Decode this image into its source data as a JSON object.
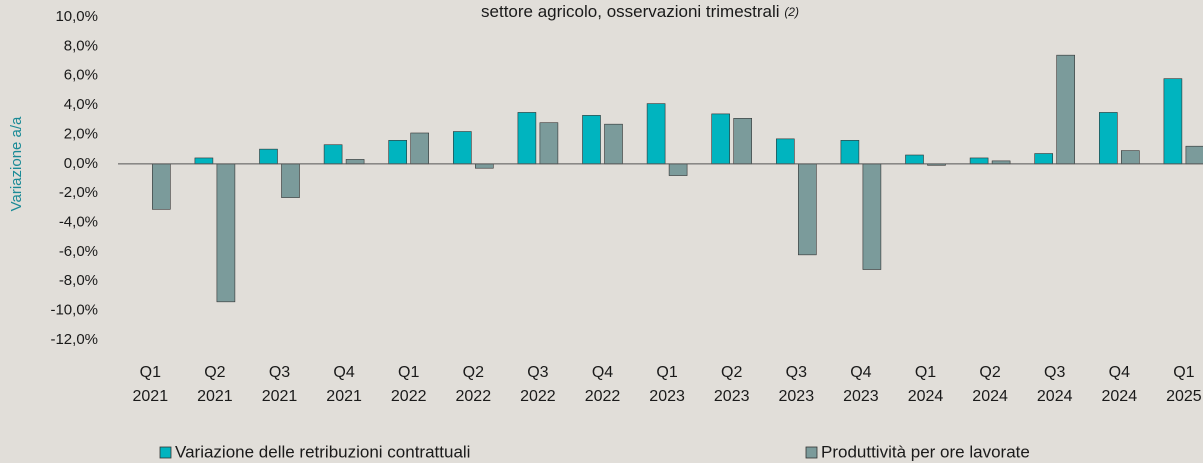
{
  "chart_data": {
    "type": "bar",
    "title": "settore agricolo, osservazioni trimestrali",
    "title_note": "(2)",
    "y_label": "Variazione a/a",
    "categories": [
      [
        "Q1",
        "2021"
      ],
      [
        "Q2",
        "2021"
      ],
      [
        "Q3",
        "2021"
      ],
      [
        "Q4",
        "2021"
      ],
      [
        "Q1",
        "2022"
      ],
      [
        "Q2",
        "2022"
      ],
      [
        "Q3",
        "2022"
      ],
      [
        "Q4",
        "2022"
      ],
      [
        "Q1",
        "2023"
      ],
      [
        "Q2",
        "2023"
      ],
      [
        "Q3",
        "2023"
      ],
      [
        "Q4",
        "2023"
      ],
      [
        "Q1",
        "2024"
      ],
      [
        "Q2",
        "2024"
      ],
      [
        "Q3",
        "2024"
      ],
      [
        "Q4",
        "2024"
      ],
      [
        "Q1",
        "2025"
      ]
    ],
    "series": [
      {
        "name": "Variazione delle retribuzioni contrattuali",
        "color": "#00b4bf",
        "values": [
          0,
          0.4,
          1.0,
          1.3,
          1.6,
          2.2,
          3.5,
          3.3,
          4.1,
          3.4,
          1.7,
          1.6,
          0.6,
          0.4,
          0.7,
          3.5,
          5.8
        ]
      },
      {
        "name": "Produttività per ore lavorate",
        "color": "#7b9b9b",
        "values": [
          -3.1,
          -9.4,
          -2.3,
          0.3,
          2.1,
          -0.3,
          2.8,
          2.7,
          -0.8,
          3.1,
          -6.2,
          -7.2,
          -0.1,
          0.2,
          7.4,
          0.9,
          1.2
        ]
      }
    ],
    "ylim": [
      -12,
      10
    ],
    "yticks": [
      {
        "value": -12,
        "label": "-12,0%"
      },
      {
        "value": -10,
        "label": "-10,0%"
      },
      {
        "value": -8,
        "label": "-8,0%"
      },
      {
        "value": -6,
        "label": "-6,0%"
      },
      {
        "value": -4,
        "label": "-4,0%"
      },
      {
        "value": -2,
        "label": "-2,0%"
      },
      {
        "value": 0,
        "label": "0,0%"
      },
      {
        "value": 2,
        "label": "2,0%"
      },
      {
        "value": 4,
        "label": "4,0%"
      },
      {
        "value": 6,
        "label": "6,0%"
      },
      {
        "value": 8,
        "label": "8,0%"
      },
      {
        "value": 10,
        "label": "10,0%"
      }
    ],
    "grid": false,
    "legend": "bottom"
  }
}
